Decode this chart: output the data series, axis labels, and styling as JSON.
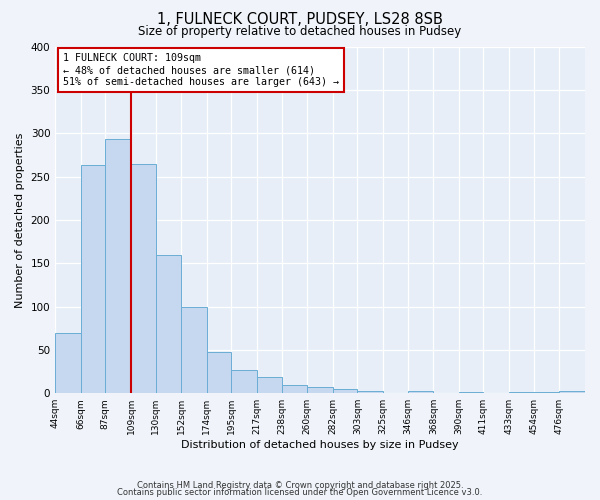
{
  "title": "1, FULNECK COURT, PUDSEY, LS28 8SB",
  "subtitle": "Size of property relative to detached houses in Pudsey",
  "xlabel": "Distribution of detached houses by size in Pudsey",
  "ylabel": "Number of detached properties",
  "bin_labels": [
    "44sqm",
    "66sqm",
    "87sqm",
    "109sqm",
    "130sqm",
    "152sqm",
    "174sqm",
    "195sqm",
    "217sqm",
    "238sqm",
    "260sqm",
    "282sqm",
    "303sqm",
    "325sqm",
    "346sqm",
    "368sqm",
    "390sqm",
    "411sqm",
    "433sqm",
    "454sqm",
    "476sqm"
  ],
  "bin_edges": [
    44,
    66,
    87,
    109,
    130,
    152,
    174,
    195,
    217,
    238,
    260,
    282,
    303,
    325,
    346,
    368,
    390,
    411,
    433,
    454,
    476
  ],
  "counts": [
    70,
    263,
    293,
    265,
    160,
    99,
    47,
    27,
    19,
    10,
    7,
    5,
    3,
    0,
    2,
    0,
    1,
    0,
    1,
    1,
    3
  ],
  "property_size": 109,
  "property_label": "1 FULNECK COURT: 109sqm",
  "annotation_line1": "← 48% of detached houses are smaller (614)",
  "annotation_line2": "51% of semi-detached houses are larger (643) →",
  "bar_facecolor": "#c5d8f0",
  "bar_edgecolor": "#6aadd5",
  "vline_color": "#cc0000",
  "background_color": "#e8eef8",
  "fig_facecolor": "#f0f4fa",
  "ylim": [
    0,
    400
  ],
  "yticks": [
    0,
    50,
    100,
    150,
    200,
    250,
    300,
    350,
    400
  ],
  "footnote1": "Contains HM Land Registry data © Crown copyright and database right 2025.",
  "footnote2": "Contains public sector information licensed under the Open Government Licence v3.0."
}
